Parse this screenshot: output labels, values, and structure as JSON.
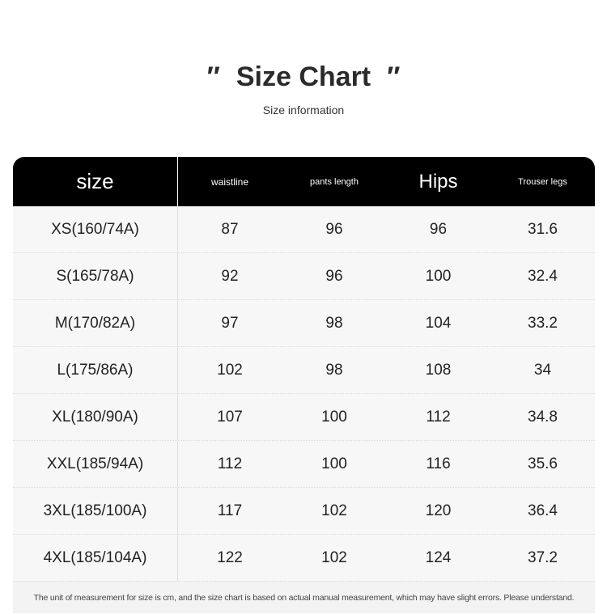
{
  "header": {
    "open_quote": "″",
    "title": "Size Chart",
    "close_quote": "″",
    "subtitle": "Size information"
  },
  "table": {
    "columns": [
      "size",
      "waistline",
      "pants length",
      "Hips",
      "Trouser legs"
    ],
    "rows": [
      [
        "XS(160/74A)",
        87,
        96,
        96,
        31.6
      ],
      [
        "S(165/78A)",
        92,
        96,
        100,
        32.4
      ],
      [
        "M(170/82A)",
        97,
        98,
        104,
        33.2
      ],
      [
        "L(175/86A)",
        102,
        98,
        108,
        34
      ],
      [
        "XL(180/90A)",
        107,
        100,
        112,
        34.8
      ],
      [
        "XXL(185/94A)",
        112,
        100,
        116,
        35.6
      ],
      [
        "3XL(185/100A)",
        117,
        102,
        120,
        36.4
      ],
      [
        "4XL(185/104A)",
        122,
        102,
        124,
        37.2
      ]
    ]
  },
  "footnote": "The unit of measurement for size is cm, and the size chart is based on actual manual measurement, which may have slight errors. Please understand."
}
